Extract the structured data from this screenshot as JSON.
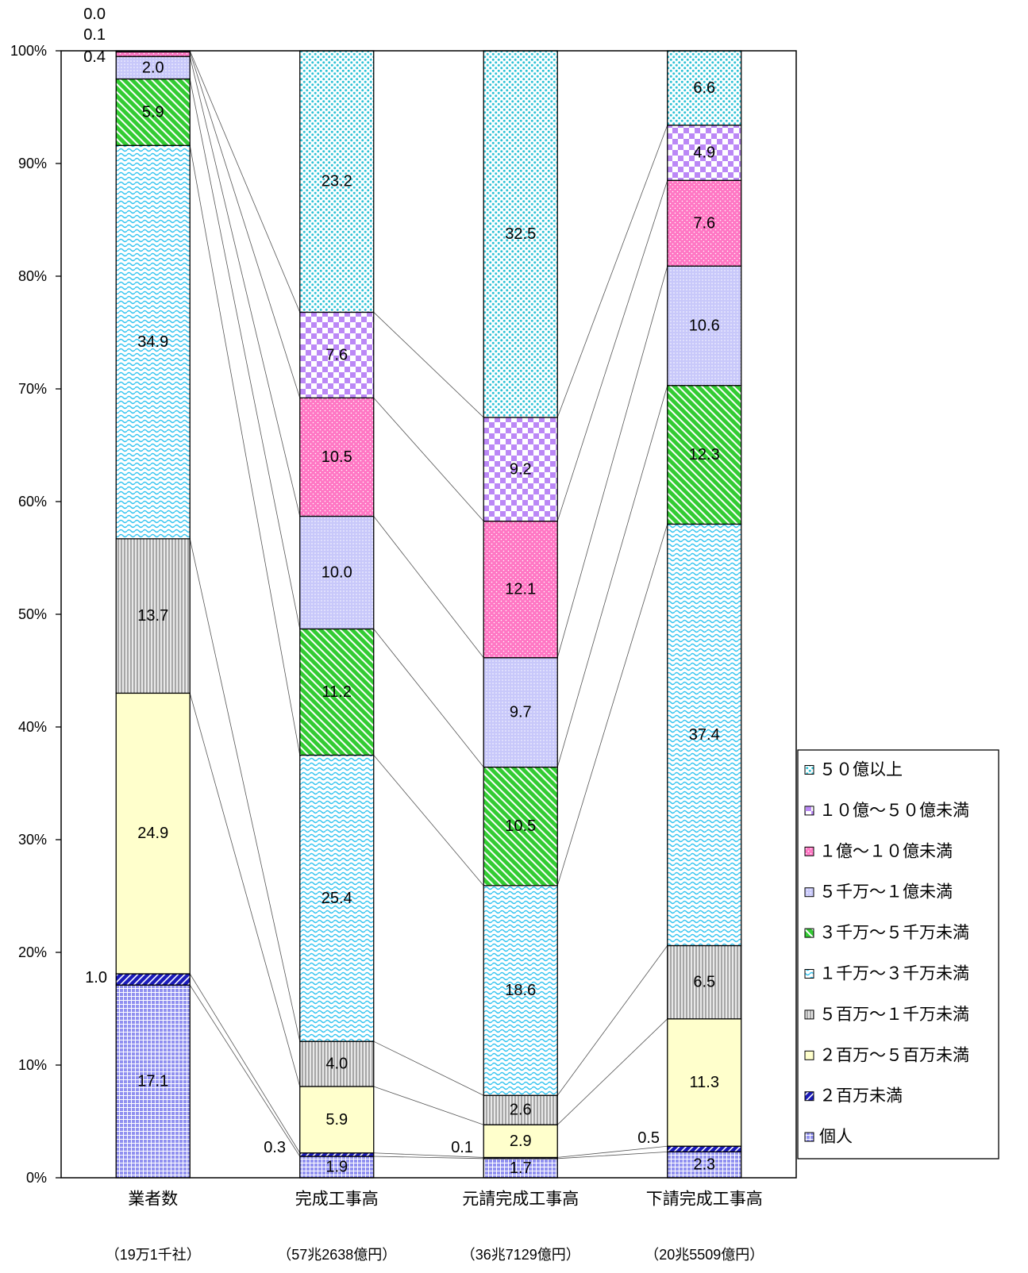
{
  "chart_data": {
    "type": "bar",
    "stacking": "percent",
    "categories": [
      "業者数",
      "完成工事高",
      "元請完成工事高",
      "下請完成工事高"
    ],
    "category_totals": [
      "（19万1千社）",
      "（57兆2638億円）",
      "（36兆7129億円）",
      "（20兆5509億円）"
    ],
    "ylim": [
      0,
      100
    ],
    "yticks": [
      "0%",
      "10%",
      "20%",
      "30%",
      "40%",
      "50%",
      "60%",
      "70%",
      "80%",
      "90%",
      "100%"
    ],
    "grid": false,
    "data_labels": true,
    "series_lines": true,
    "legend": {
      "placement": "right"
    },
    "series": [
      {
        "name": "個人",
        "color": "#9090F0",
        "values": [
          17.1,
          1.9,
          1.7,
          2.3
        ]
      },
      {
        "name": "２百万未満",
        "color": "#1A1AB8",
        "values": [
          1.0,
          0.3,
          0.1,
          0.5
        ]
      },
      {
        "name": "２百万～５百万未満",
        "color": "#FFFFCC",
        "values": [
          24.9,
          5.9,
          2.9,
          11.3
        ]
      },
      {
        "name": "５百万～１千万未満",
        "color": "#A6A6A6",
        "values": [
          13.7,
          4.0,
          2.6,
          6.5
        ]
      },
      {
        "name": "１千万～３千万未満",
        "color": "#33C4F0",
        "values": [
          34.9,
          25.4,
          18.6,
          37.4
        ]
      },
      {
        "name": "３千万～５千万未満",
        "color": "#33CC33",
        "values": [
          5.9,
          11.2,
          10.5,
          12.3
        ]
      },
      {
        "name": "５千万～１億未満",
        "color": "#C8C8FA",
        "values": [
          2.0,
          10.0,
          9.7,
          10.6
        ]
      },
      {
        "name": "１億～１０億未満",
        "color": "#FF77C4",
        "values": [
          0.4,
          10.5,
          12.1,
          7.6
        ]
      },
      {
        "name": "１０億～５０億未満",
        "color": "#BB88F6",
        "values": [
          0.1,
          7.6,
          9.2,
          4.9
        ]
      },
      {
        "name": "５０億以上",
        "color": "#2EC2D6",
        "values": [
          0.0,
          23.2,
          32.5,
          6.6
        ]
      }
    ]
  }
}
